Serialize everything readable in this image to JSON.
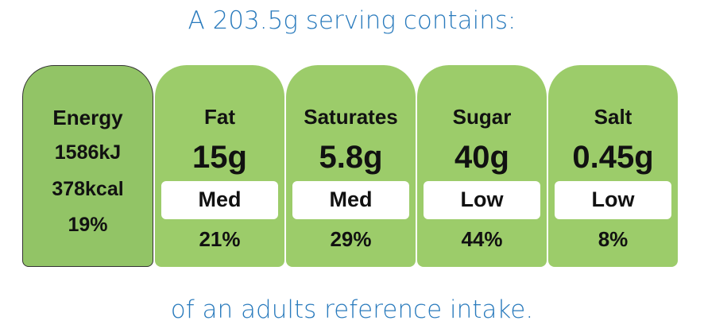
{
  "header": {
    "title": "A 203.5g serving contains:"
  },
  "energy": {
    "label": "Energy",
    "kj": "1586kJ",
    "kcal": "378kcal",
    "percent": "19%"
  },
  "nutrients": [
    {
      "label": "Fat",
      "amount": "15g",
      "level": "Med",
      "percent": "21%"
    },
    {
      "label": "Saturates",
      "amount": "5.8g",
      "level": "Med",
      "percent": "29%"
    },
    {
      "label": "Sugar",
      "amount": "40g",
      "level": "Low",
      "percent": "44%"
    },
    {
      "label": "Salt",
      "amount": "0.45g",
      "level": "Low",
      "percent": "8%"
    }
  ],
  "footer": {
    "text": "of an adults reference intake."
  }
}
